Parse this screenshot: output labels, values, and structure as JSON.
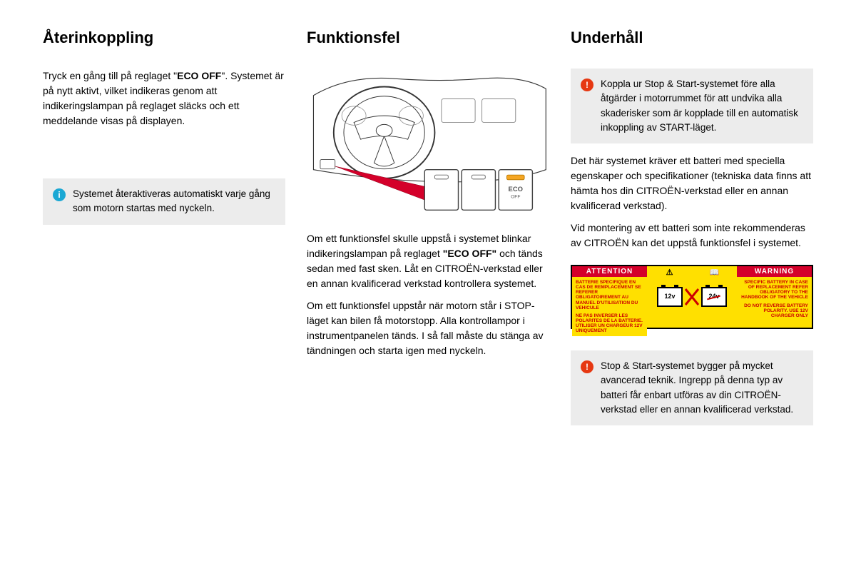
{
  "col1": {
    "heading": "Återinkoppling",
    "para": "Tryck en gång till på reglaget \"ECO OFF\". Systemet är på nytt aktivt, vilket indikeras genom att indikeringslampan på reglaget släcks och ett meddelande visas på displayen.",
    "info": "Systemet återaktiveras automatiskt varje gång som motorn startas med nyckeln."
  },
  "col2": {
    "heading": "Funktionsfel",
    "eco_label_top": "ECO",
    "eco_label_bottom": "OFF",
    "para1_a": "Om ett funktionsfel skulle uppstå i systemet blinkar indikeringslampan på reglaget ",
    "para1_bold": "\"ECO OFF\"",
    "para1_b": " och tänds sedan med fast sken. Låt en CITROËN-verkstad eller en annan kvalificerad verkstad kontrollera systemet.",
    "para2": "Om ett funktionsfel uppstår när motorn står i STOP-läget kan bilen få motorstopp. Alla kontrollampor i instrumentpanelen tänds. I så fall måste du stänga av tändningen och starta igen med nyckeln."
  },
  "col3": {
    "heading": "Underhåll",
    "warn1": "Koppla ur Stop & Start-systemet före alla åtgärder i motorrummet för att undvika alla skaderisker som är kopplade till en automatisk inkoppling av START-läget.",
    "para1": "Det här systemet kräver ett batteri med speciella egenskaper och specifikationer (tekniska data finns att hämta hos din CITROËN-verkstad eller en annan kvalificerad verkstad).",
    "para2": "Vid montering av ett batteri som inte rekommenderas av CITROËN kan det uppstå funktionsfel i systemet.",
    "label": {
      "attention": "ATTENTION",
      "warning": "WARNING",
      "left_top": "BATTERIE SPECIFIQUE EN CAS DE REMPLACEMENT SE REFERER OBLIGATOIREMENT AU MANUEL D'UTILISATION DU VEHICULE",
      "left_bot": "NE PAS INVERSER LES POLARITES DE LA BATTERIE. UTILISER UN CHARGEUR 12V UNIQUEMENT",
      "right_top": "SPECIFIC BATTERY IN CASE OF REPLACEMENT REFER OBLIGATORY TO THE HANDBOOK OF THE VEHICLE",
      "right_bot": "DO NOT REVERSE BATTERY POLARITY. USE 12V CHARGER ONLY",
      "v12": "12v",
      "v24": "24v"
    },
    "warn2": "Stop & Start-systemet bygger på mycket avancerad teknik. Ingrepp på denna typ av batteri får enbart utföras av din CITROËN-verkstad eller en annan kvalificerad verkstad."
  },
  "eco_bold": "ECO OFF",
  "colors": {
    "info_bg": "#ececec",
    "info_icon": "#1ba8d4",
    "warn_icon": "#e63812",
    "label_red": "#d4002a",
    "label_yellow": "#ffe000"
  }
}
